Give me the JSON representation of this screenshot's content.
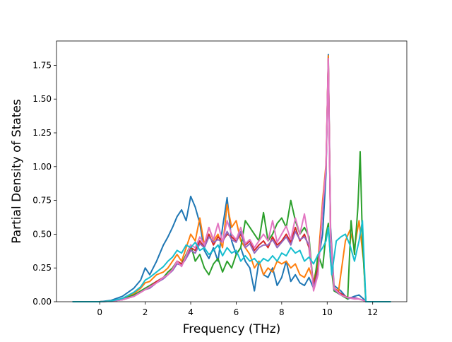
{
  "chart_data": {
    "type": "line",
    "title": "",
    "xlabel": "Frequency (THz)",
    "ylabel": "Partial Density of States",
    "xlim": [
      -1.9,
      13.5
    ],
    "ylim": [
      0.0,
      1.93
    ],
    "xticks": [
      0,
      2,
      4,
      6,
      8,
      10,
      12
    ],
    "xtick_labels": [
      "0",
      "2",
      "4",
      "6",
      "8",
      "10",
      "12"
    ],
    "yticks": [
      0.0,
      0.25,
      0.5,
      0.75,
      1.0,
      1.25,
      1.5,
      1.75
    ],
    "ytick_labels": [
      "0.00",
      "0.25",
      "0.50",
      "0.75",
      "1.00",
      "1.25",
      "1.50",
      "1.75"
    ],
    "grid": false,
    "legend": "none",
    "series": [
      {
        "color": "#1f77b4",
        "x": [
          -1.2,
          0,
          0.5,
          1,
          1.5,
          1.8,
          2,
          2.2,
          2.5,
          2.8,
          3,
          3.2,
          3.4,
          3.6,
          3.8,
          4,
          4.2,
          4.4,
          4.6,
          4.8,
          5,
          5.2,
          5.4,
          5.6,
          5.8,
          6,
          6.2,
          6.4,
          6.6,
          6.8,
          7,
          7.2,
          7.4,
          7.6,
          7.8,
          8,
          8.2,
          8.4,
          8.6,
          8.8,
          9,
          9.2,
          9.4,
          9.6,
          9.8,
          9.95,
          10.05,
          10.15,
          10.3,
          10.6,
          10.9,
          11.2,
          11.4,
          11.6,
          11.7,
          12.8
        ],
        "y": [
          0,
          0,
          0.01,
          0.04,
          0.1,
          0.16,
          0.25,
          0.2,
          0.3,
          0.42,
          0.48,
          0.55,
          0.63,
          0.68,
          0.6,
          0.78,
          0.7,
          0.58,
          0.38,
          0.32,
          0.4,
          0.3,
          0.55,
          0.77,
          0.45,
          0.35,
          0.4,
          0.3,
          0.25,
          0.08,
          0.3,
          0.2,
          0.18,
          0.25,
          0.12,
          0.18,
          0.3,
          0.15,
          0.2,
          0.14,
          0.12,
          0.18,
          0.1,
          0.3,
          0.5,
          0.95,
          1.83,
          0.55,
          0.12,
          0.08,
          0.02,
          0.04,
          0.05,
          0.02,
          0,
          0
        ]
      },
      {
        "color": "#ff7f0e",
        "x": [
          -1.2,
          0,
          0.5,
          1,
          1.5,
          1.8,
          2,
          2.2,
          2.5,
          2.8,
          3,
          3.2,
          3.4,
          3.6,
          3.8,
          4,
          4.2,
          4.4,
          4.6,
          4.8,
          5,
          5.2,
          5.4,
          5.6,
          5.8,
          6,
          6.2,
          6.4,
          6.6,
          6.8,
          7,
          7.2,
          7.4,
          7.6,
          7.8,
          8,
          8.2,
          8.4,
          8.6,
          8.8,
          9,
          9.2,
          9.4,
          9.6,
          9.8,
          9.95,
          10.05,
          10.15,
          10.3,
          10.5,
          10.8,
          11.0,
          11.2,
          11.4,
          11.6,
          11.7,
          12.8
        ],
        "y": [
          0,
          0,
          0.005,
          0.02,
          0.06,
          0.1,
          0.14,
          0.15,
          0.2,
          0.22,
          0.25,
          0.3,
          0.35,
          0.3,
          0.4,
          0.5,
          0.45,
          0.62,
          0.42,
          0.55,
          0.45,
          0.5,
          0.4,
          0.72,
          0.55,
          0.6,
          0.45,
          0.4,
          0.35,
          0.25,
          0.3,
          0.2,
          0.25,
          0.22,
          0.3,
          0.28,
          0.3,
          0.25,
          0.28,
          0.2,
          0.18,
          0.25,
          0.15,
          0.3,
          0.75,
          1.02,
          1.82,
          0.5,
          0.1,
          0.08,
          0.45,
          0.53,
          0.4,
          0.6,
          0.3,
          0,
          0
        ]
      },
      {
        "color": "#2ca02c",
        "x": [
          -1.2,
          0,
          0.5,
          1,
          1.5,
          1.8,
          2,
          2.2,
          2.5,
          2.8,
          3,
          3.2,
          3.4,
          3.6,
          3.8,
          4,
          4.2,
          4.4,
          4.6,
          4.8,
          5,
          5.2,
          5.4,
          5.6,
          5.8,
          6,
          6.2,
          6.4,
          6.6,
          6.8,
          7,
          7.2,
          7.4,
          7.6,
          7.8,
          8,
          8.2,
          8.4,
          8.6,
          8.8,
          9,
          9.2,
          9.4,
          9.6,
          9.8,
          9.95,
          10.05,
          10.15,
          10.3,
          10.6,
          10.9,
          11.05,
          11.2,
          11.35,
          11.45,
          11.55,
          11.7,
          12.8
        ],
        "y": [
          0,
          0,
          0.005,
          0.02,
          0.05,
          0.08,
          0.1,
          0.12,
          0.15,
          0.18,
          0.22,
          0.25,
          0.3,
          0.28,
          0.35,
          0.42,
          0.3,
          0.35,
          0.25,
          0.2,
          0.28,
          0.32,
          0.22,
          0.3,
          0.25,
          0.35,
          0.4,
          0.6,
          0.55,
          0.5,
          0.45,
          0.66,
          0.45,
          0.5,
          0.58,
          0.62,
          0.55,
          0.75,
          0.6,
          0.5,
          0.55,
          0.48,
          0.1,
          0.35,
          0.25,
          0.5,
          0.58,
          0.3,
          0.08,
          0.05,
          0.02,
          0.6,
          0.35,
          0.7,
          1.11,
          0.45,
          0,
          0
        ]
      },
      {
        "color": "#d62728",
        "x": [
          -1.2,
          0,
          0.5,
          1,
          1.5,
          1.8,
          2,
          2.2,
          2.5,
          2.8,
          3,
          3.2,
          3.4,
          3.6,
          3.8,
          4,
          4.2,
          4.4,
          4.6,
          4.8,
          5,
          5.2,
          5.4,
          5.6,
          5.8,
          6,
          6.2,
          6.4,
          6.6,
          6.8,
          7,
          7.2,
          7.4,
          7.6,
          7.8,
          8,
          8.2,
          8.4,
          8.6,
          8.8,
          9,
          9.2,
          9.4,
          9.6,
          9.8,
          9.95,
          10.05,
          10.15,
          10.3,
          10.6,
          10.9,
          11.2,
          11.4,
          11.6,
          11.7,
          12.8
        ],
        "y": [
          0,
          0,
          0.004,
          0.015,
          0.04,
          0.07,
          0.09,
          0.11,
          0.15,
          0.18,
          0.2,
          0.24,
          0.3,
          0.28,
          0.33,
          0.4,
          0.38,
          0.45,
          0.4,
          0.5,
          0.42,
          0.48,
          0.45,
          0.5,
          0.48,
          0.45,
          0.5,
          0.42,
          0.45,
          0.38,
          0.42,
          0.45,
          0.4,
          0.48,
          0.42,
          0.45,
          0.5,
          0.44,
          0.55,
          0.45,
          0.5,
          0.4,
          0.12,
          0.25,
          0.7,
          1.0,
          1.8,
          0.5,
          0.1,
          0.06,
          0.03,
          0.03,
          0.02,
          0.01,
          0,
          0
        ]
      },
      {
        "color": "#9467bd",
        "x": [
          -1.2,
          0,
          0.5,
          1,
          1.5,
          1.8,
          2,
          2.2,
          2.5,
          2.8,
          3,
          3.2,
          3.4,
          3.6,
          3.8,
          4,
          4.2,
          4.4,
          4.6,
          4.8,
          5,
          5.2,
          5.4,
          5.6,
          5.8,
          6,
          6.2,
          6.4,
          6.6,
          6.8,
          7,
          7.2,
          7.4,
          7.6,
          7.8,
          8,
          8.2,
          8.4,
          8.6,
          8.8,
          9,
          9.2,
          9.4,
          9.6,
          9.8,
          9.95,
          10.05,
          10.15,
          10.3,
          10.6,
          10.9,
          11.2,
          11.4,
          11.6,
          11.7,
          12.8
        ],
        "y": [
          0,
          0,
          0.004,
          0.015,
          0.04,
          0.07,
          0.09,
          0.1,
          0.14,
          0.17,
          0.2,
          0.23,
          0.28,
          0.27,
          0.32,
          0.38,
          0.36,
          0.43,
          0.4,
          0.48,
          0.44,
          0.46,
          0.44,
          0.52,
          0.46,
          0.44,
          0.52,
          0.4,
          0.43,
          0.36,
          0.4,
          0.42,
          0.42,
          0.46,
          0.4,
          0.44,
          0.48,
          0.42,
          0.52,
          0.46,
          0.48,
          0.42,
          0.1,
          0.22,
          0.68,
          0.98,
          1.78,
          0.48,
          0.09,
          0.05,
          0.03,
          0.03,
          0.02,
          0.01,
          0,
          0
        ]
      },
      {
        "color": "#e377c2",
        "x": [
          -1.2,
          0,
          0.5,
          1,
          1.5,
          1.8,
          2,
          2.2,
          2.5,
          2.8,
          3,
          3.2,
          3.4,
          3.6,
          3.8,
          4,
          4.2,
          4.4,
          4.6,
          4.8,
          5,
          5.2,
          5.4,
          5.6,
          5.8,
          6,
          6.2,
          6.4,
          6.6,
          6.8,
          7,
          7.2,
          7.4,
          7.6,
          7.8,
          8,
          8.2,
          8.4,
          8.6,
          8.8,
          9,
          9.2,
          9.4,
          9.6,
          9.8,
          9.95,
          10.05,
          10.15,
          10.3,
          10.6,
          10.9,
          11.2,
          11.4,
          11.6,
          11.7,
          12.8
        ],
        "y": [
          0,
          0,
          0.004,
          0.015,
          0.04,
          0.07,
          0.09,
          0.11,
          0.14,
          0.18,
          0.2,
          0.24,
          0.3,
          0.26,
          0.34,
          0.42,
          0.4,
          0.48,
          0.42,
          0.55,
          0.46,
          0.58,
          0.44,
          0.6,
          0.5,
          0.46,
          0.55,
          0.43,
          0.46,
          0.4,
          0.45,
          0.5,
          0.45,
          0.6,
          0.44,
          0.5,
          0.56,
          0.46,
          0.62,
          0.5,
          0.65,
          0.45,
          0.08,
          0.2,
          0.7,
          1.0,
          1.8,
          0.5,
          0.1,
          0.05,
          0.03,
          0.02,
          0.02,
          0.01,
          0,
          0
        ]
      },
      {
        "color": "#17becf",
        "x": [
          -1.2,
          0,
          0.5,
          1,
          1.5,
          1.8,
          2,
          2.2,
          2.5,
          2.8,
          3,
          3.2,
          3.4,
          3.6,
          3.8,
          4,
          4.2,
          4.4,
          4.6,
          4.8,
          5,
          5.2,
          5.4,
          5.6,
          5.8,
          6,
          6.2,
          6.4,
          6.6,
          6.8,
          7,
          7.2,
          7.4,
          7.6,
          7.8,
          8,
          8.2,
          8.4,
          8.6,
          8.8,
          9,
          9.2,
          9.4,
          9.6,
          9.8,
          9.95,
          10.05,
          10.2,
          10.4,
          10.6,
          10.8,
          11.0,
          11.2,
          11.4,
          11.55,
          11.7,
          12.8
        ],
        "y": [
          0,
          0,
          0.005,
          0.025,
          0.07,
          0.11,
          0.16,
          0.18,
          0.22,
          0.26,
          0.3,
          0.33,
          0.38,
          0.36,
          0.42,
          0.4,
          0.44,
          0.38,
          0.4,
          0.35,
          0.38,
          0.42,
          0.34,
          0.4,
          0.36,
          0.38,
          0.3,
          0.34,
          0.3,
          0.32,
          0.28,
          0.32,
          0.3,
          0.34,
          0.3,
          0.36,
          0.34,
          0.4,
          0.36,
          0.38,
          0.3,
          0.33,
          0.28,
          0.35,
          0.4,
          0.45,
          0.55,
          0.2,
          0.45,
          0.48,
          0.5,
          0.42,
          0.3,
          0.45,
          0.6,
          0,
          0
        ]
      }
    ]
  }
}
